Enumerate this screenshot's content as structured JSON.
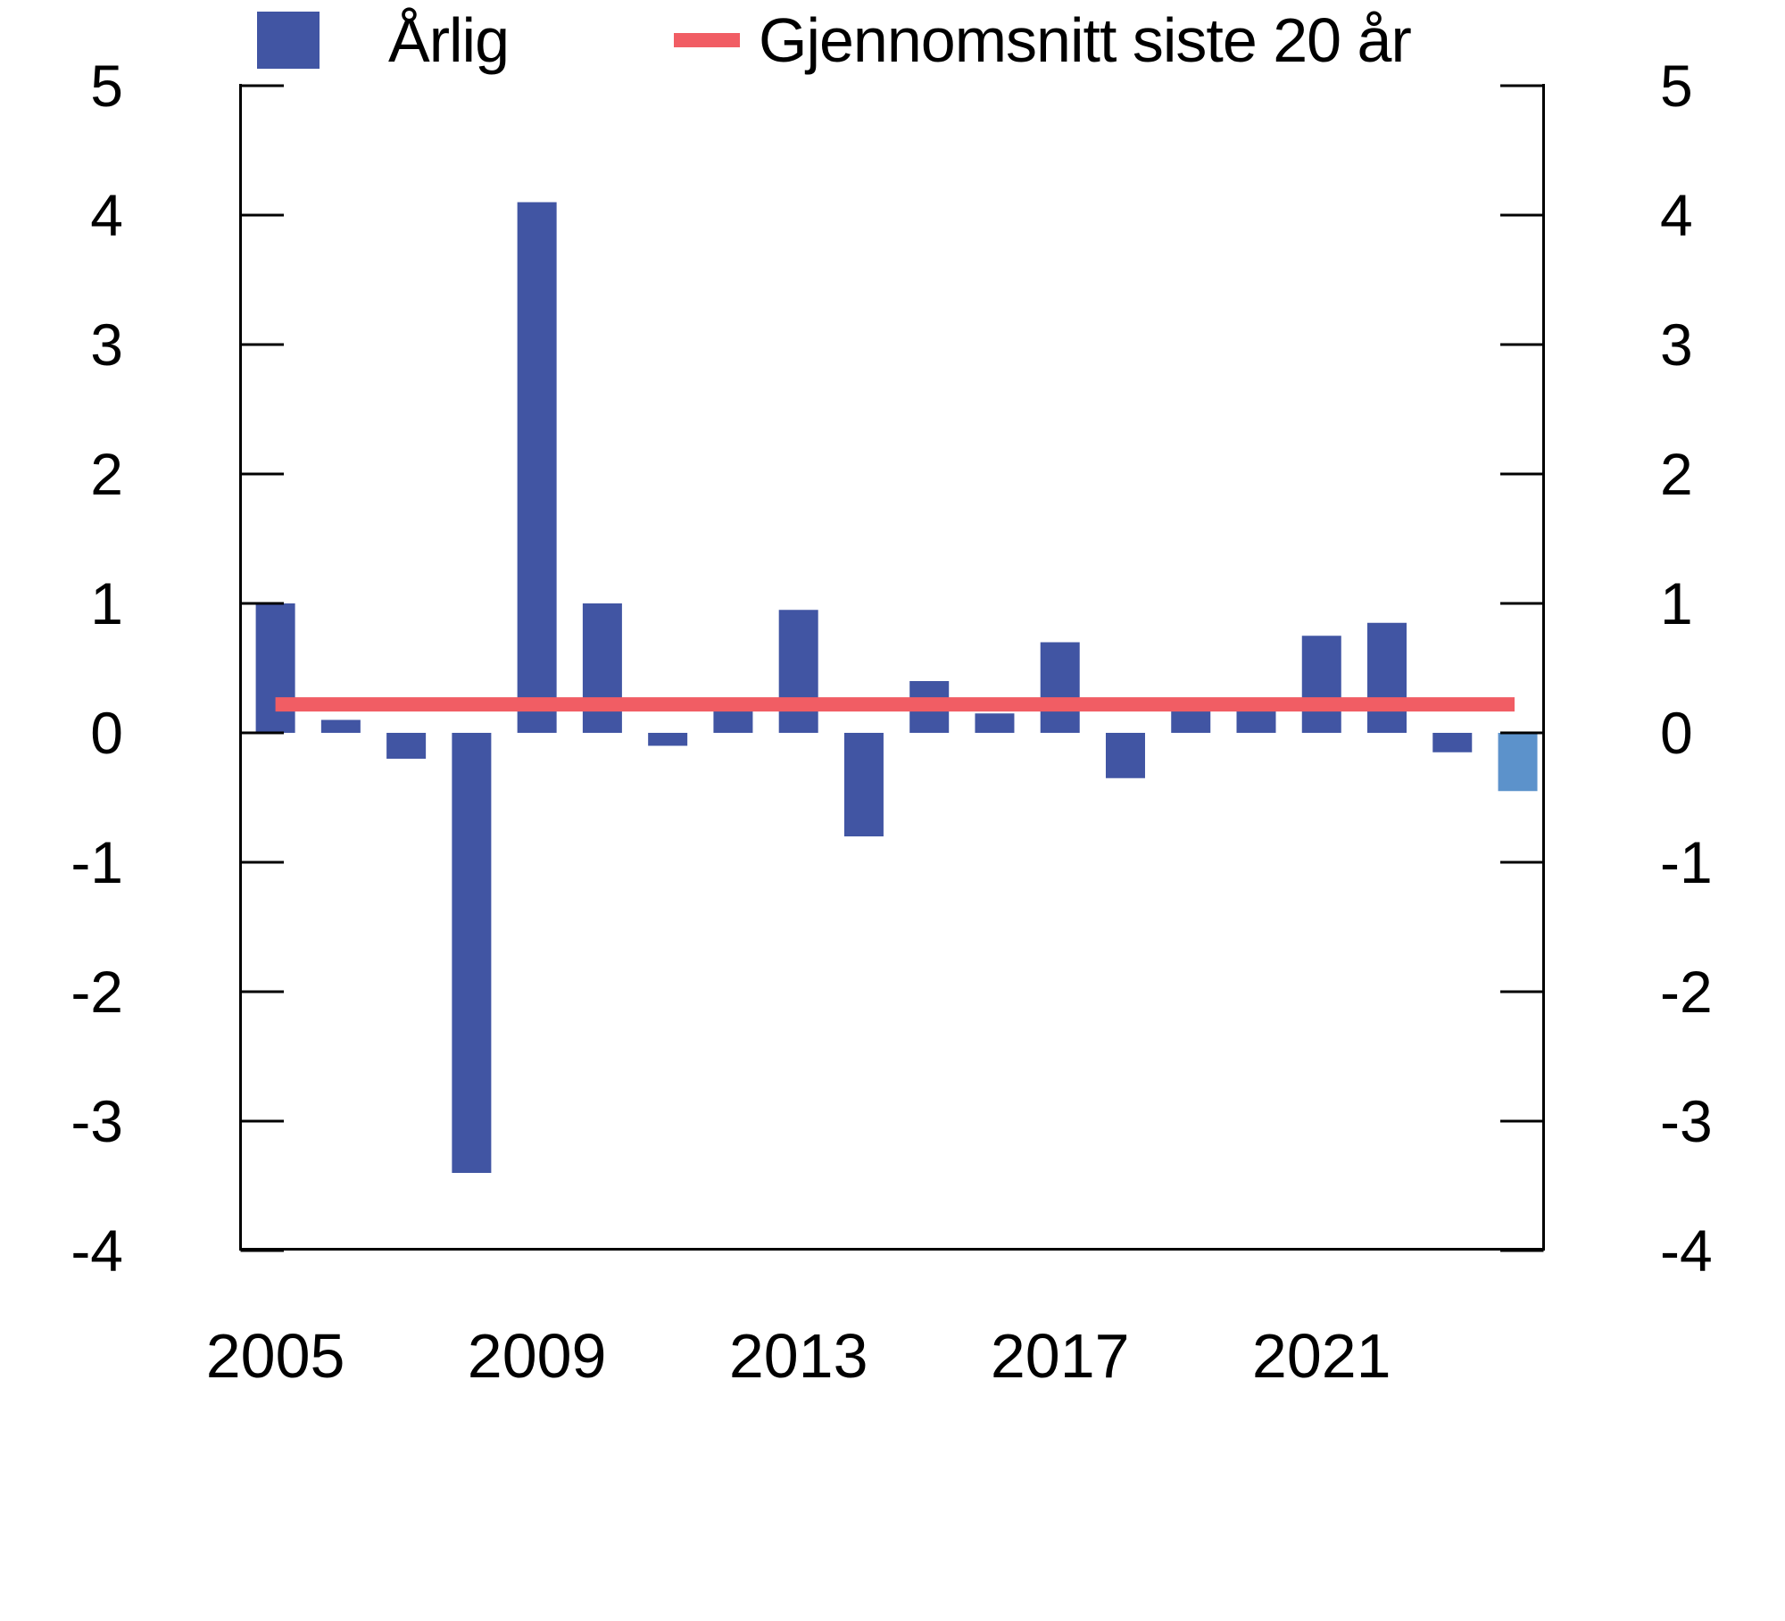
{
  "chart_data": {
    "type": "bar",
    "title": "",
    "categories": [
      2005,
      2006,
      2007,
      2008,
      2009,
      2010,
      2011,
      2012,
      2013,
      2014,
      2015,
      2016,
      2017,
      2018,
      2019,
      2020,
      2021,
      2022,
      2023,
      2024
    ],
    "series": [
      {
        "name": "Årlig",
        "type": "bar",
        "values": [
          1.0,
          0.1,
          -0.2,
          -3.4,
          4.1,
          1.0,
          -0.1,
          0.2,
          0.95,
          -0.8,
          0.4,
          0.15,
          0.7,
          -0.35,
          0.2,
          0.2,
          0.75,
          0.85,
          -0.15,
          -0.45
        ],
        "color": "#4155A3",
        "last_bar_color": "#5C92CB"
      },
      {
        "name": "Gjennomsnitt siste 20 år",
        "type": "line",
        "value": 0.22,
        "color": "#F15D64"
      }
    ],
    "ylim": [
      -4,
      5
    ],
    "yticks": [
      5,
      4,
      3,
      2,
      1,
      0,
      -1,
      -2,
      -3,
      -4
    ],
    "ytick_labels_left": [
      "5",
      "4",
      "3",
      "2",
      "1",
      "0",
      "-1",
      "-2",
      "-3",
      "-4"
    ],
    "ytick_labels_right": [
      "5",
      "4",
      "3",
      "2",
      "1",
      "0",
      "-1",
      "-2",
      "-3",
      "-4"
    ],
    "xtick_labels": [
      "2005",
      "2009",
      "2013",
      "2017",
      "2021"
    ],
    "xlabel": "",
    "ylabel": "",
    "grid": false,
    "legend_position": "bottom"
  },
  "legend": {
    "items": [
      {
        "label": "Årlig",
        "swatch": "square",
        "color": "#4155A3"
      },
      {
        "label": "Gjennomsnitt siste 20 år",
        "swatch": "line",
        "color": "#F15D64"
      }
    ]
  }
}
